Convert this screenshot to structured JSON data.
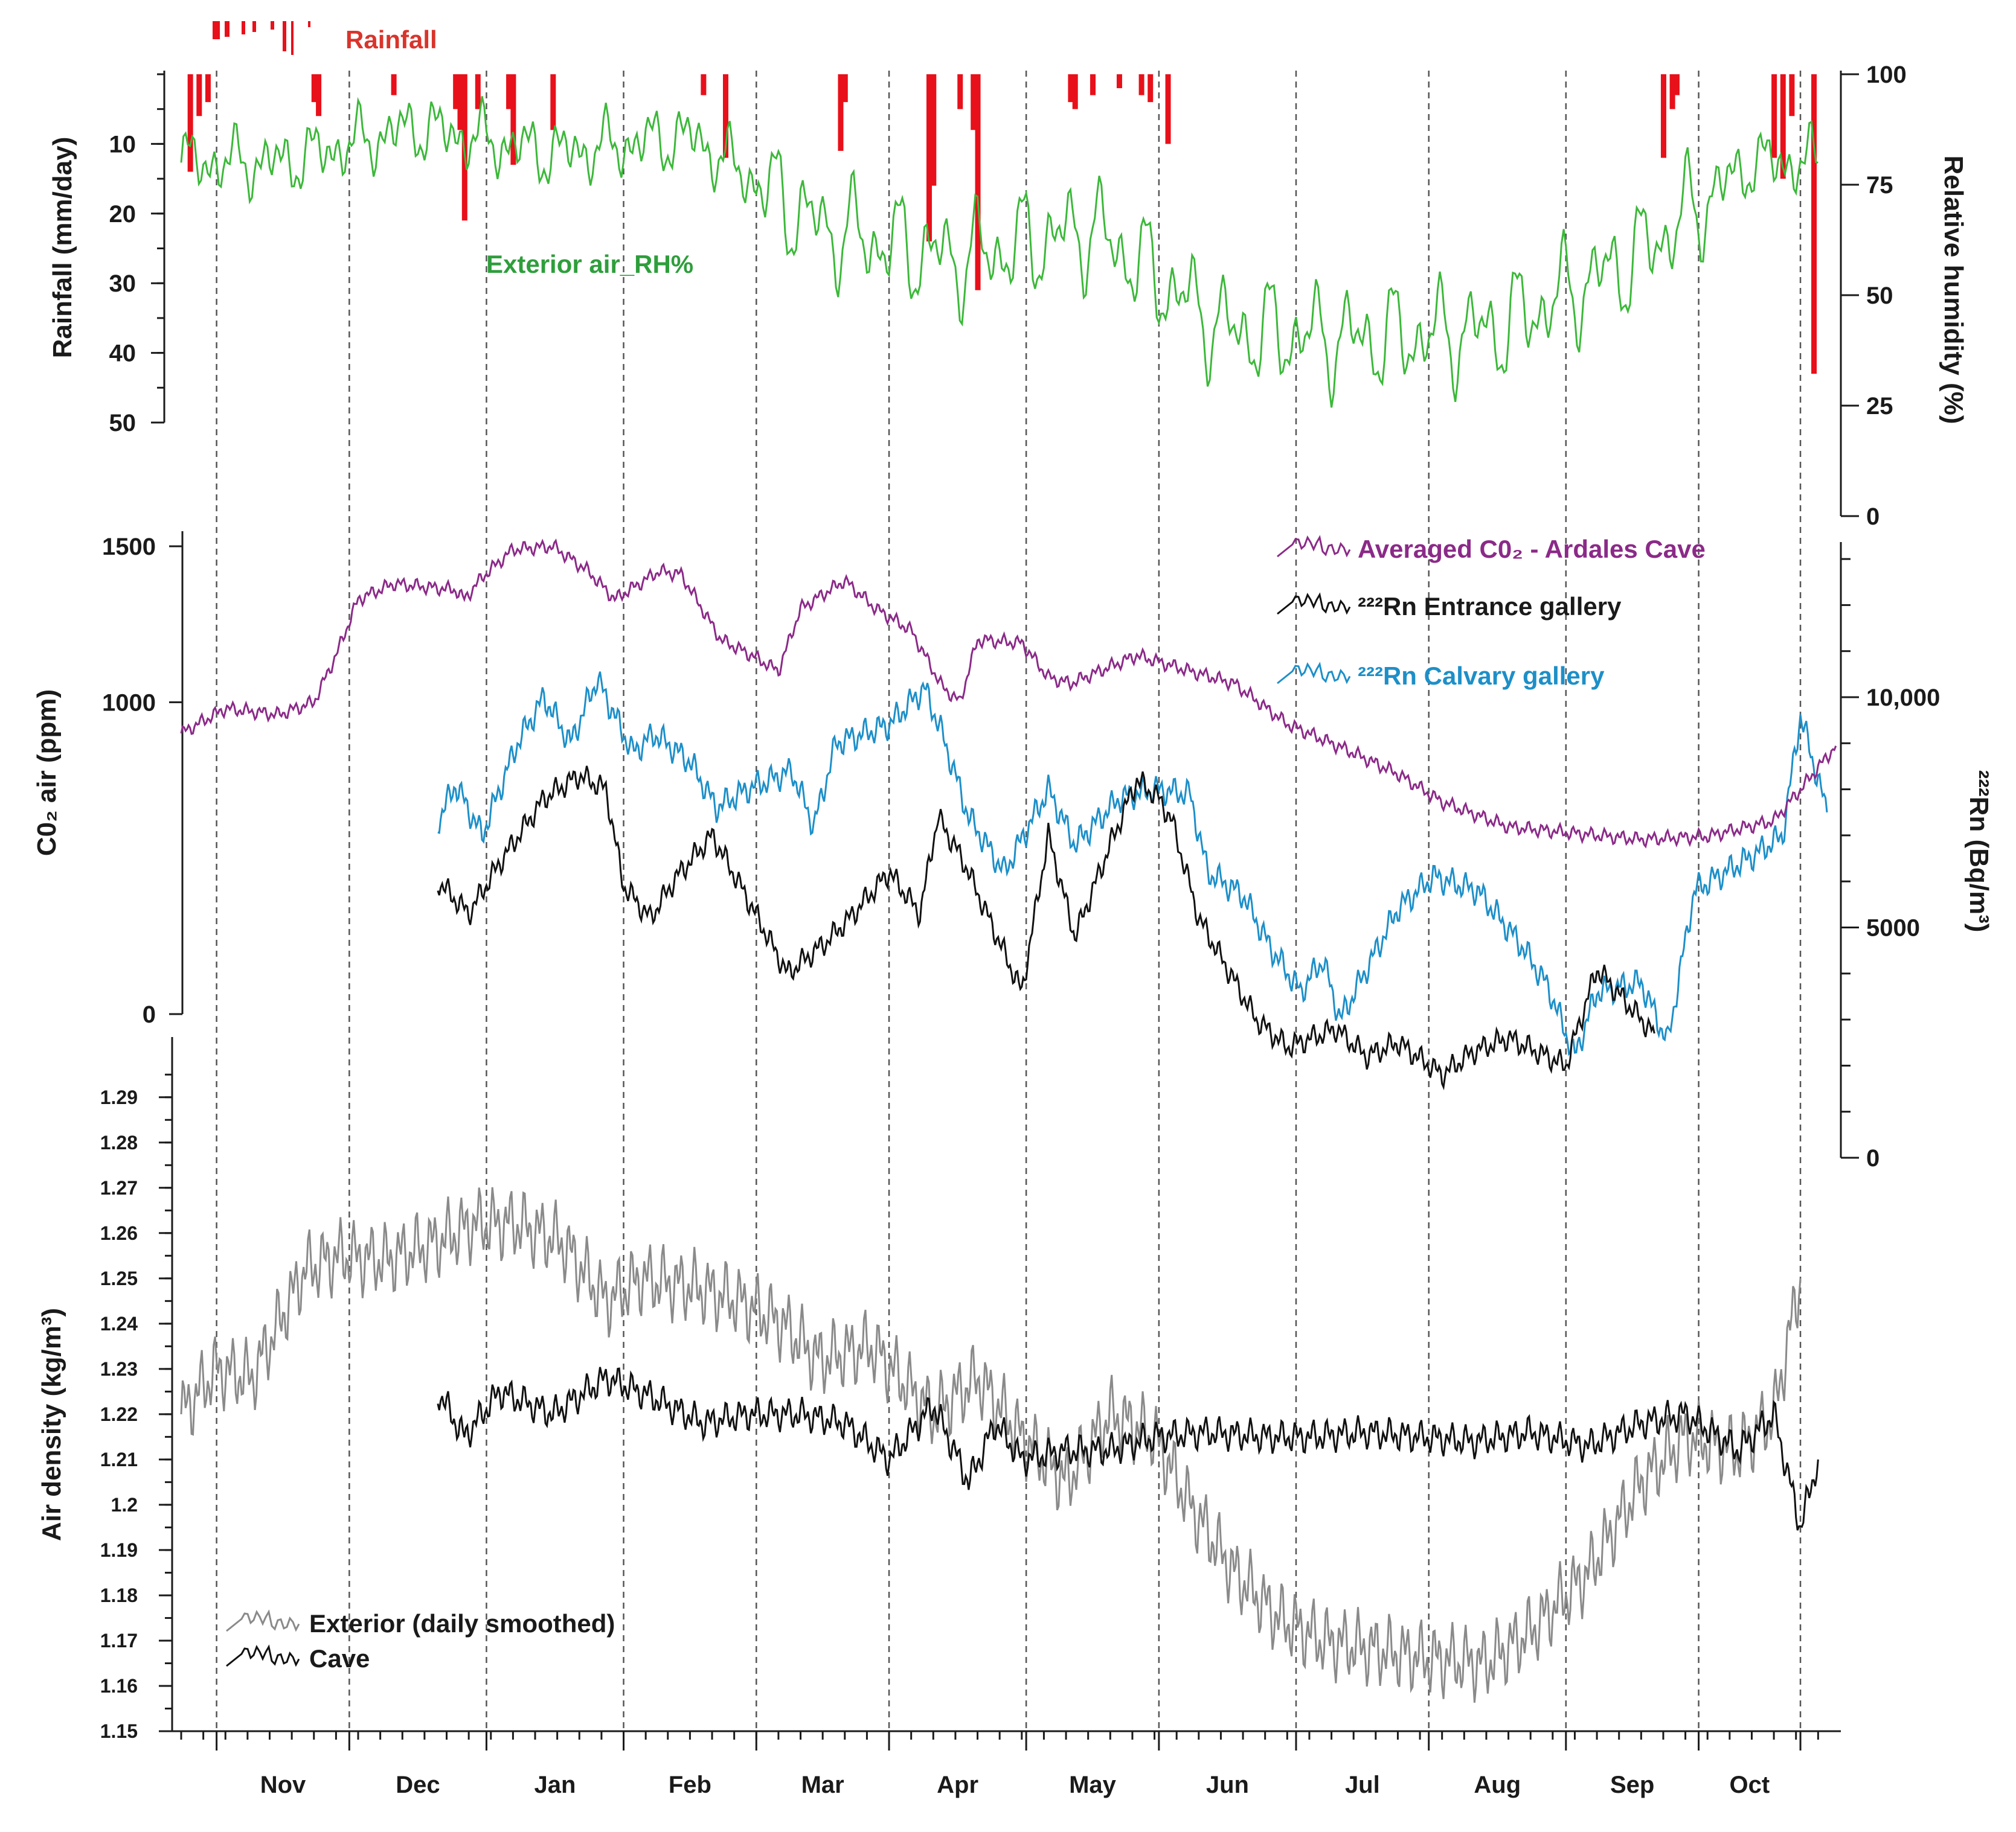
{
  "chart_data": [
    {
      "type": "bar+line",
      "panel": "top",
      "legend": {
        "rainfall": "Rainfall",
        "rh": "Exterior air_RH%"
      },
      "ylabel_left": "Rainfall (mm/day)",
      "ylabel_right": "Relative humidity (%)",
      "left_ticks": [
        "10",
        "20",
        "30",
        "40",
        "50"
      ],
      "right_ticks": [
        "100",
        "75",
        "50",
        "25",
        "0"
      ],
      "rainfall_axis_inverted": true,
      "ylim_rain": [
        0,
        50
      ],
      "ylim_rh": [
        0,
        100
      ],
      "colors": {
        "rainfall": "#e8101a",
        "rh": "#3cb83a"
      },
      "rainfall_events": [
        {
          "day": 2,
          "mm": 14
        },
        {
          "day": 4,
          "mm": 6
        },
        {
          "day": 6,
          "mm": 4
        },
        {
          "day": 30,
          "mm": 4
        },
        {
          "day": 31,
          "mm": 6
        },
        {
          "day": 48,
          "mm": 3
        },
        {
          "day": 62,
          "mm": 5
        },
        {
          "day": 63,
          "mm": 8
        },
        {
          "day": 64,
          "mm": 21
        },
        {
          "day": 67,
          "mm": 5
        },
        {
          "day": 74,
          "mm": 5
        },
        {
          "day": 75,
          "mm": 13
        },
        {
          "day": 84,
          "mm": 8
        },
        {
          "day": 118,
          "mm": 3
        },
        {
          "day": 123,
          "mm": 12
        },
        {
          "day": 149,
          "mm": 11
        },
        {
          "day": 150,
          "mm": 4
        },
        {
          "day": 169,
          "mm": 24
        },
        {
          "day": 170,
          "mm": 16
        },
        {
          "day": 176,
          "mm": 5
        },
        {
          "day": 179,
          "mm": 8
        },
        {
          "day": 180,
          "mm": 31
        },
        {
          "day": 201,
          "mm": 4
        },
        {
          "day": 202,
          "mm": 5
        },
        {
          "day": 206,
          "mm": 3
        },
        {
          "day": 212,
          "mm": 2
        },
        {
          "day": 217,
          "mm": 3
        },
        {
          "day": 219,
          "mm": 4
        },
        {
          "day": 223,
          "mm": 10
        },
        {
          "day": 335,
          "mm": 12
        },
        {
          "day": 337,
          "mm": 5
        },
        {
          "day": 338,
          "mm": 3
        },
        {
          "day": 360,
          "mm": 12
        },
        {
          "day": 362,
          "mm": 15
        },
        {
          "day": 364,
          "mm": 6
        },
        {
          "day": 369,
          "mm": 43
        }
      ],
      "rh_monthly_mean": [
        {
          "month": "Nov",
          "value": 80
        },
        {
          "month": "Dec",
          "value": 88
        },
        {
          "month": "Jan",
          "value": 82
        },
        {
          "month": "Feb",
          "value": 86
        },
        {
          "month": "Mar",
          "value": 65
        },
        {
          "month": "Apr",
          "value": 58
        },
        {
          "month": "May",
          "value": 65
        },
        {
          "month": "Jun",
          "value": 42
        },
        {
          "month": "Jul",
          "value": 40
        },
        {
          "month": "Aug",
          "value": 42
        },
        {
          "month": "Sep",
          "value": 58
        },
        {
          "month": "Oct",
          "value": 80
        }
      ]
    },
    {
      "type": "line",
      "panel": "middle",
      "ylabel_left": "C0₂ air (ppm)",
      "ylabel_right": "²²²Rn (Bq/m³)",
      "left_ticks": [
        "0",
        "1000",
        "1500"
      ],
      "right_ticks": [
        "0",
        "5000",
        "10,000"
      ],
      "ylim_co2": [
        0,
        1500
      ],
      "ylim_rn": [
        0,
        13000
      ],
      "series": [
        {
          "name": "Averaged C0₂ - Ardales Cave",
          "color": "#8b2a88",
          "points": [
            [
              0,
              900
            ],
            [
              10,
              980
            ],
            [
              22,
              960
            ],
            [
              30,
              1000
            ],
            [
              35,
              1150
            ],
            [
              40,
              1330
            ],
            [
              48,
              1380
            ],
            [
              62,
              1360
            ],
            [
              64,
              1330
            ],
            [
              68,
              1400
            ],
            [
              75,
              1490
            ],
            [
              84,
              1500
            ],
            [
              92,
              1420
            ],
            [
              98,
              1330
            ],
            [
              108,
              1420
            ],
            [
              113,
              1410
            ],
            [
              122,
              1200
            ],
            [
              129,
              1150
            ],
            [
              135,
              1100
            ],
            [
              140,
              1300
            ],
            [
              150,
              1390
            ],
            [
              157,
              1300
            ],
            [
              165,
              1230
            ],
            [
              172,
              1050
            ],
            [
              176,
              1000
            ],
            [
              180,
              1200
            ],
            [
              190,
              1190
            ],
            [
              196,
              1080
            ],
            [
              201,
              1060
            ],
            [
              216,
              1150
            ],
            [
              228,
              1100
            ],
            [
              238,
              1060
            ],
            [
              250,
              930
            ],
            [
              263,
              850
            ],
            [
              275,
              770
            ],
            [
              285,
              680
            ],
            [
              300,
              600
            ],
            [
              330,
              560
            ],
            [
              345,
              570
            ],
            [
              360,
              620
            ],
            [
              366,
              720
            ],
            [
              374,
              860
            ]
          ]
        },
        {
          "name": "²²²Rn Entrance gallery",
          "color": "#111111",
          "points": [
            [
              58,
              6000
            ],
            [
              65,
              5300
            ],
            [
              72,
              6400
            ],
            [
              82,
              7800
            ],
            [
              90,
              8300
            ],
            [
              96,
              8000
            ],
            [
              100,
              5900
            ],
            [
              106,
              5200
            ],
            [
              112,
              6100
            ],
            [
              120,
              7000
            ],
            [
              127,
              5800
            ],
            [
              137,
              4000
            ],
            [
              146,
              4700
            ],
            [
              152,
              5300
            ],
            [
              160,
              6200
            ],
            [
              167,
              5300
            ],
            [
              171,
              7400
            ],
            [
              177,
              6400
            ],
            [
              183,
              5100
            ],
            [
              190,
              3600
            ],
            [
              196,
              7000
            ],
            [
              202,
              4800
            ],
            [
              210,
              6800
            ],
            [
              216,
              8200
            ],
            [
              221,
              7800
            ],
            [
              224,
              7300
            ],
            [
              230,
              5200
            ],
            [
              243,
              3000
            ],
            [
              250,
              2400
            ],
            [
              261,
              2800
            ],
            [
              268,
              2200
            ],
            [
              275,
              2500
            ],
            [
              285,
              1800
            ],
            [
              292,
              2300
            ],
            [
              300,
              2600
            ],
            [
              313,
              2000
            ],
            [
              320,
              4100
            ],
            [
              330,
              3000
            ],
            [
              333,
              2700
            ]
          ]
        },
        {
          "name": "²²²Rn Calvary gallery",
          "color": "#1d8fc8",
          "points": [
            [
              58,
              7300
            ],
            [
              62,
              8100
            ],
            [
              68,
              7000
            ],
            [
              76,
              9000
            ],
            [
              82,
              10000
            ],
            [
              88,
              9000
            ],
            [
              94,
              10400
            ],
            [
              102,
              8800
            ],
            [
              107,
              9200
            ],
            [
              115,
              8600
            ],
            [
              121,
              7600
            ],
            [
              128,
              8000
            ],
            [
              138,
              8400
            ],
            [
              143,
              7200
            ],
            [
              148,
              9000
            ],
            [
              160,
              9400
            ],
            [
              168,
              10200
            ],
            [
              172,
              9200
            ],
            [
              178,
              7400
            ],
            [
              186,
              6200
            ],
            [
              196,
              8000
            ],
            [
              202,
              6800
            ],
            [
              212,
              7800
            ],
            [
              220,
              8000
            ],
            [
              228,
              7900
            ],
            [
              232,
              6200
            ],
            [
              240,
              5700
            ],
            [
              246,
              4600
            ],
            [
              253,
              3600
            ],
            [
              258,
              4300
            ],
            [
              262,
              3000
            ],
            [
              275,
              5400
            ],
            [
              283,
              6100
            ],
            [
              293,
              5800
            ],
            [
              303,
              4600
            ],
            [
              309,
              3700
            ],
            [
              315,
              2200
            ],
            [
              320,
              3600
            ],
            [
              330,
              3800
            ],
            [
              336,
              2500
            ],
            [
              342,
              5800
            ],
            [
              356,
              6600
            ],
            [
              362,
              7000
            ],
            [
              366,
              9600
            ],
            [
              372,
              7500
            ]
          ]
        }
      ]
    },
    {
      "type": "line",
      "panel": "bottom",
      "ylabel": "Air density (kg/m³)",
      "ylim": [
        1.15,
        1.29
      ],
      "yticks": [
        "1.15",
        "1.16",
        "1.17",
        "1.18",
        "1.19",
        "1.2",
        "1.21",
        "1.22",
        "1.23",
        "1.24",
        "1.25",
        "1.26",
        "1.27",
        "1.28",
        "1.29"
      ],
      "xticks": [
        "Nov",
        "Dec",
        "Jan",
        "Feb",
        "Mar",
        "Apr",
        "May",
        "Jun",
        "Jul",
        "Aug",
        "Sep",
        "Oct"
      ],
      "series": [
        {
          "name": "Exterior (daily smoothed)",
          "color": "#8a8a8a",
          "points": [
            [
              0,
              1.22
            ],
            [
              8,
              1.23
            ],
            [
              16,
              1.228
            ],
            [
              22,
              1.24
            ],
            [
              28,
              1.252
            ],
            [
              36,
              1.255
            ],
            [
              46,
              1.254
            ],
            [
              58,
              1.258
            ],
            [
              66,
              1.262
            ],
            [
              76,
              1.262
            ],
            [
              86,
              1.258
            ],
            [
              96,
              1.245
            ],
            [
              104,
              1.25
            ],
            [
              116,
              1.248
            ],
            [
              126,
              1.245
            ],
            [
              136,
              1.24
            ],
            [
              144,
              1.232
            ],
            [
              156,
              1.235
            ],
            [
              170,
              1.22
            ],
            [
              180,
              1.228
            ],
            [
              190,
              1.215
            ],
            [
              200,
              1.205
            ],
            [
              210,
              1.22
            ],
            [
              220,
              1.215
            ],
            [
              228,
              1.2
            ],
            [
              238,
              1.185
            ],
            [
              248,
              1.175
            ],
            [
              258,
              1.17
            ],
            [
              270,
              1.168
            ],
            [
              282,
              1.166
            ],
            [
              295,
              1.165
            ],
            [
              305,
              1.172
            ],
            [
              318,
              1.185
            ],
            [
              330,
              1.205
            ],
            [
              340,
              1.215
            ],
            [
              352,
              1.212
            ],
            [
              360,
              1.22
            ],
            [
              366,
              1.25
            ]
          ]
        },
        {
          "name": "Cave",
          "color": "#111111",
          "points": [
            [
              58,
              1.225
            ],
            [
              64,
              1.215
            ],
            [
              72,
              1.225
            ],
            [
              84,
              1.22
            ],
            [
              96,
              1.228
            ],
            [
              106,
              1.224
            ],
            [
              118,
              1.218
            ],
            [
              128,
              1.22
            ],
            [
              140,
              1.22
            ],
            [
              150,
              1.218
            ],
            [
              160,
              1.21
            ],
            [
              170,
              1.222
            ],
            [
              178,
              1.205
            ],
            [
              184,
              1.218
            ],
            [
              190,
              1.21
            ],
            [
              200,
              1.212
            ],
            [
              210,
              1.212
            ],
            [
              220,
              1.215
            ],
            [
              232,
              1.216
            ],
            [
              245,
              1.215
            ],
            [
              255,
              1.215
            ],
            [
              268,
              1.216
            ],
            [
              280,
              1.215
            ],
            [
              292,
              1.214
            ],
            [
              305,
              1.216
            ],
            [
              318,
              1.213
            ],
            [
              330,
              1.218
            ],
            [
              340,
              1.22
            ],
            [
              352,
              1.212
            ],
            [
              360,
              1.22
            ],
            [
              366,
              1.195
            ],
            [
              370,
              1.21
            ]
          ]
        }
      ]
    }
  ]
}
